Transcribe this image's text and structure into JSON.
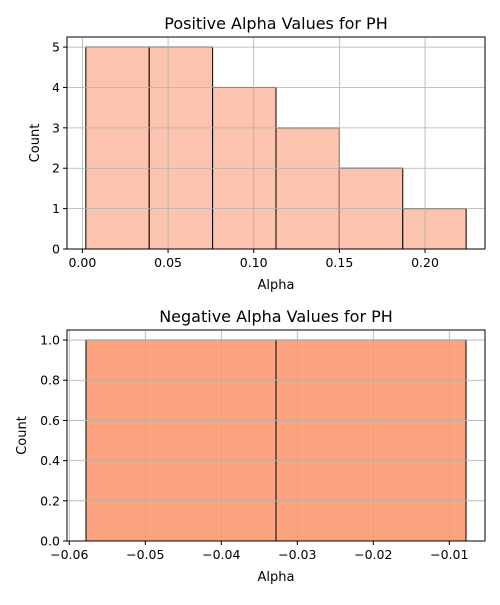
{
  "chart_data": [
    {
      "type": "bar",
      "title": "Positive Alpha Values for PH",
      "xlabel": "Alpha",
      "ylabel": "Count",
      "bins": [
        {
          "x0": 0.002,
          "x1": 0.039,
          "count": 5
        },
        {
          "x0": 0.039,
          "x1": 0.076,
          "count": 5
        },
        {
          "x0": 0.076,
          "x1": 0.113,
          "count": 4
        },
        {
          "x0": 0.113,
          "x1": 0.15,
          "count": 3
        },
        {
          "x0": 0.15,
          "x1": 0.187,
          "count": 2
        },
        {
          "x0": 0.187,
          "x1": 0.224,
          "count": 1
        }
      ],
      "xlim": [
        -0.009,
        0.235
      ],
      "ylim": [
        0,
        5.25
      ],
      "xticks": [
        0.0,
        0.05,
        0.1,
        0.15,
        0.2
      ],
      "xtick_labels": [
        "0.00",
        "0.05",
        "0.10",
        "0.15",
        "0.20"
      ],
      "yticks": [
        0,
        1,
        2,
        3,
        4,
        5
      ],
      "ytick_labels": [
        "0",
        "1",
        "2",
        "3",
        "4",
        "5"
      ],
      "grid": true,
      "bar_color": "#fcc4ae",
      "edge_color": "#000000"
    },
    {
      "type": "bar",
      "title": "Negative Alpha Values for PH",
      "xlabel": "Alpha",
      "ylabel": "Count",
      "bins": [
        {
          "x0": -0.0578,
          "x1": -0.0328,
          "count": 1
        },
        {
          "x0": -0.0328,
          "x1": -0.0078,
          "count": 1
        }
      ],
      "xlim": [
        -0.0603,
        -0.0053
      ],
      "ylim": [
        0,
        1.05
      ],
      "xticks": [
        -0.06,
        -0.05,
        -0.04,
        -0.03,
        -0.02,
        -0.01
      ],
      "xtick_labels": [
        "−0.06",
        "−0.05",
        "−0.04",
        "−0.03",
        "−0.02",
        "−0.01"
      ],
      "yticks": [
        0.0,
        0.2,
        0.4,
        0.6,
        0.8,
        1.0
      ],
      "ytick_labels": [
        "0.0",
        "0.2",
        "0.4",
        "0.6",
        "0.8",
        "1.0"
      ],
      "grid": true,
      "bar_color": "#fca480",
      "edge_color": "#000000"
    }
  ]
}
